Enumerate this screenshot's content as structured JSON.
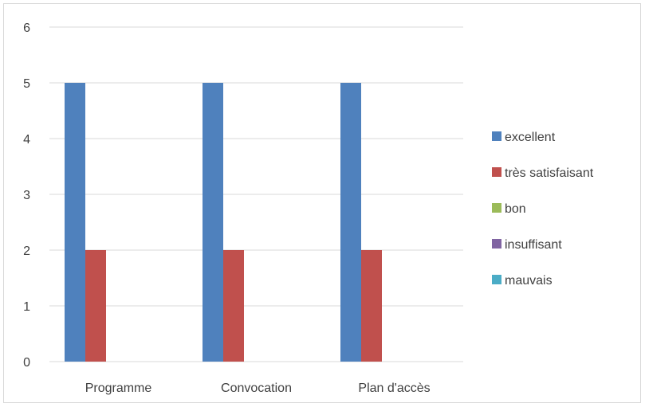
{
  "chart_data": {
    "type": "bar",
    "categories": [
      "Programme",
      "Convocation",
      "Plan d'accès"
    ],
    "series": [
      {
        "name": "excellent",
        "values": [
          5,
          5,
          5
        ],
        "color": "#4f81bd"
      },
      {
        "name": "très satisfaisant",
        "values": [
          2,
          2,
          2
        ],
        "color": "#c0504d"
      },
      {
        "name": "bon",
        "values": [
          0,
          0,
          0
        ],
        "color": "#9bbb59"
      },
      {
        "name": "insuffisant",
        "values": [
          0,
          0,
          0
        ],
        "color": "#8064a2"
      },
      {
        "name": "mauvais",
        "values": [
          0,
          0,
          0
        ],
        "color": "#4bacc6"
      }
    ],
    "ylim": [
      0,
      6
    ],
    "yticks": [
      0,
      1,
      2,
      3,
      4,
      5,
      6
    ],
    "grid": true,
    "legend": "right",
    "title": "",
    "xlabel": "",
    "ylabel": ""
  }
}
